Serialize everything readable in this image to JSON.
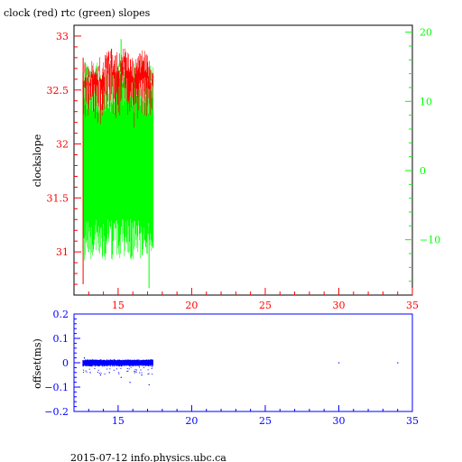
{
  "title": "clock (red) rtc (green) slopes",
  "footer": "2015-07-12 info.physics.ubc.ca",
  "colors": {
    "red": "#ff0000",
    "green": "#00ff00",
    "blue": "#0000ff",
    "axis": "#000000"
  },
  "chart_data": [
    {
      "type": "line",
      "title": "clock (red) rtc (green) slopes",
      "xlabel": "",
      "ylabel": "clockslope",
      "xlim": [
        12,
        35
      ],
      "x_ticks": [
        15,
        20,
        25,
        30,
        35
      ],
      "y_left_lim": [
        30.6,
        33.1
      ],
      "y_left_ticks": [
        31,
        31.5,
        32,
        32.5,
        33
      ],
      "y_right_lim": [
        -18,
        21
      ],
      "y_right_ticks": [
        -10,
        0,
        10,
        20
      ],
      "grid": false,
      "series": [
        {
          "name": "clock",
          "axis": "left",
          "color": "#ff0000",
          "x_range": [
            12.6,
            17.4
          ],
          "envelope_x": [
            12.6,
            13.0,
            13.5,
            14.0,
            14.5,
            15.0,
            15.5,
            16.0,
            16.5,
            17.0,
            17.4
          ],
          "envelope_low": [
            31.0,
            31.9,
            31.8,
            32.0,
            31.85,
            31.9,
            32.0,
            31.75,
            31.8,
            32.0,
            32.1
          ],
          "envelope_high": [
            32.8,
            32.75,
            32.8,
            32.85,
            32.9,
            32.85,
            32.9,
            32.8,
            32.9,
            32.85,
            32.65
          ]
        },
        {
          "name": "rtc",
          "axis": "right",
          "color": "#00ff00",
          "x_range": [
            12.6,
            17.4
          ],
          "envelope_low": -10,
          "envelope_high": 12,
          "extremes": [
            -17,
            19
          ]
        }
      ]
    },
    {
      "type": "scatter",
      "ylabel": "offset(ms)",
      "xlim": [
        12,
        35
      ],
      "x_ticks": [
        15,
        20,
        25,
        30,
        35
      ],
      "ylim": [
        -0.2,
        0.2
      ],
      "y_ticks": [
        -0.2,
        -0.1,
        0,
        0.1,
        0.2
      ],
      "y_tick_labels": [
        "−0.2",
        "−0.1",
        "0",
        "0.1",
        "0.2"
      ],
      "grid": false,
      "series": [
        {
          "name": "offset",
          "color": "#0000ff",
          "band": {
            "x_range": [
              12.6,
              17.4
            ],
            "y_range": [
              -0.01,
              0.01
            ]
          },
          "outliers": [
            [
              12.7,
              0.02
            ],
            [
              13.1,
              -0.04
            ],
            [
              13.8,
              -0.05
            ],
            [
              14.4,
              -0.04
            ],
            [
              15.2,
              -0.06
            ],
            [
              15.8,
              -0.08
            ],
            [
              16.6,
              -0.05
            ],
            [
              17.1,
              -0.09
            ],
            [
              30.0,
              0.0
            ],
            [
              34.0,
              0.0
            ]
          ]
        }
      ]
    }
  ]
}
